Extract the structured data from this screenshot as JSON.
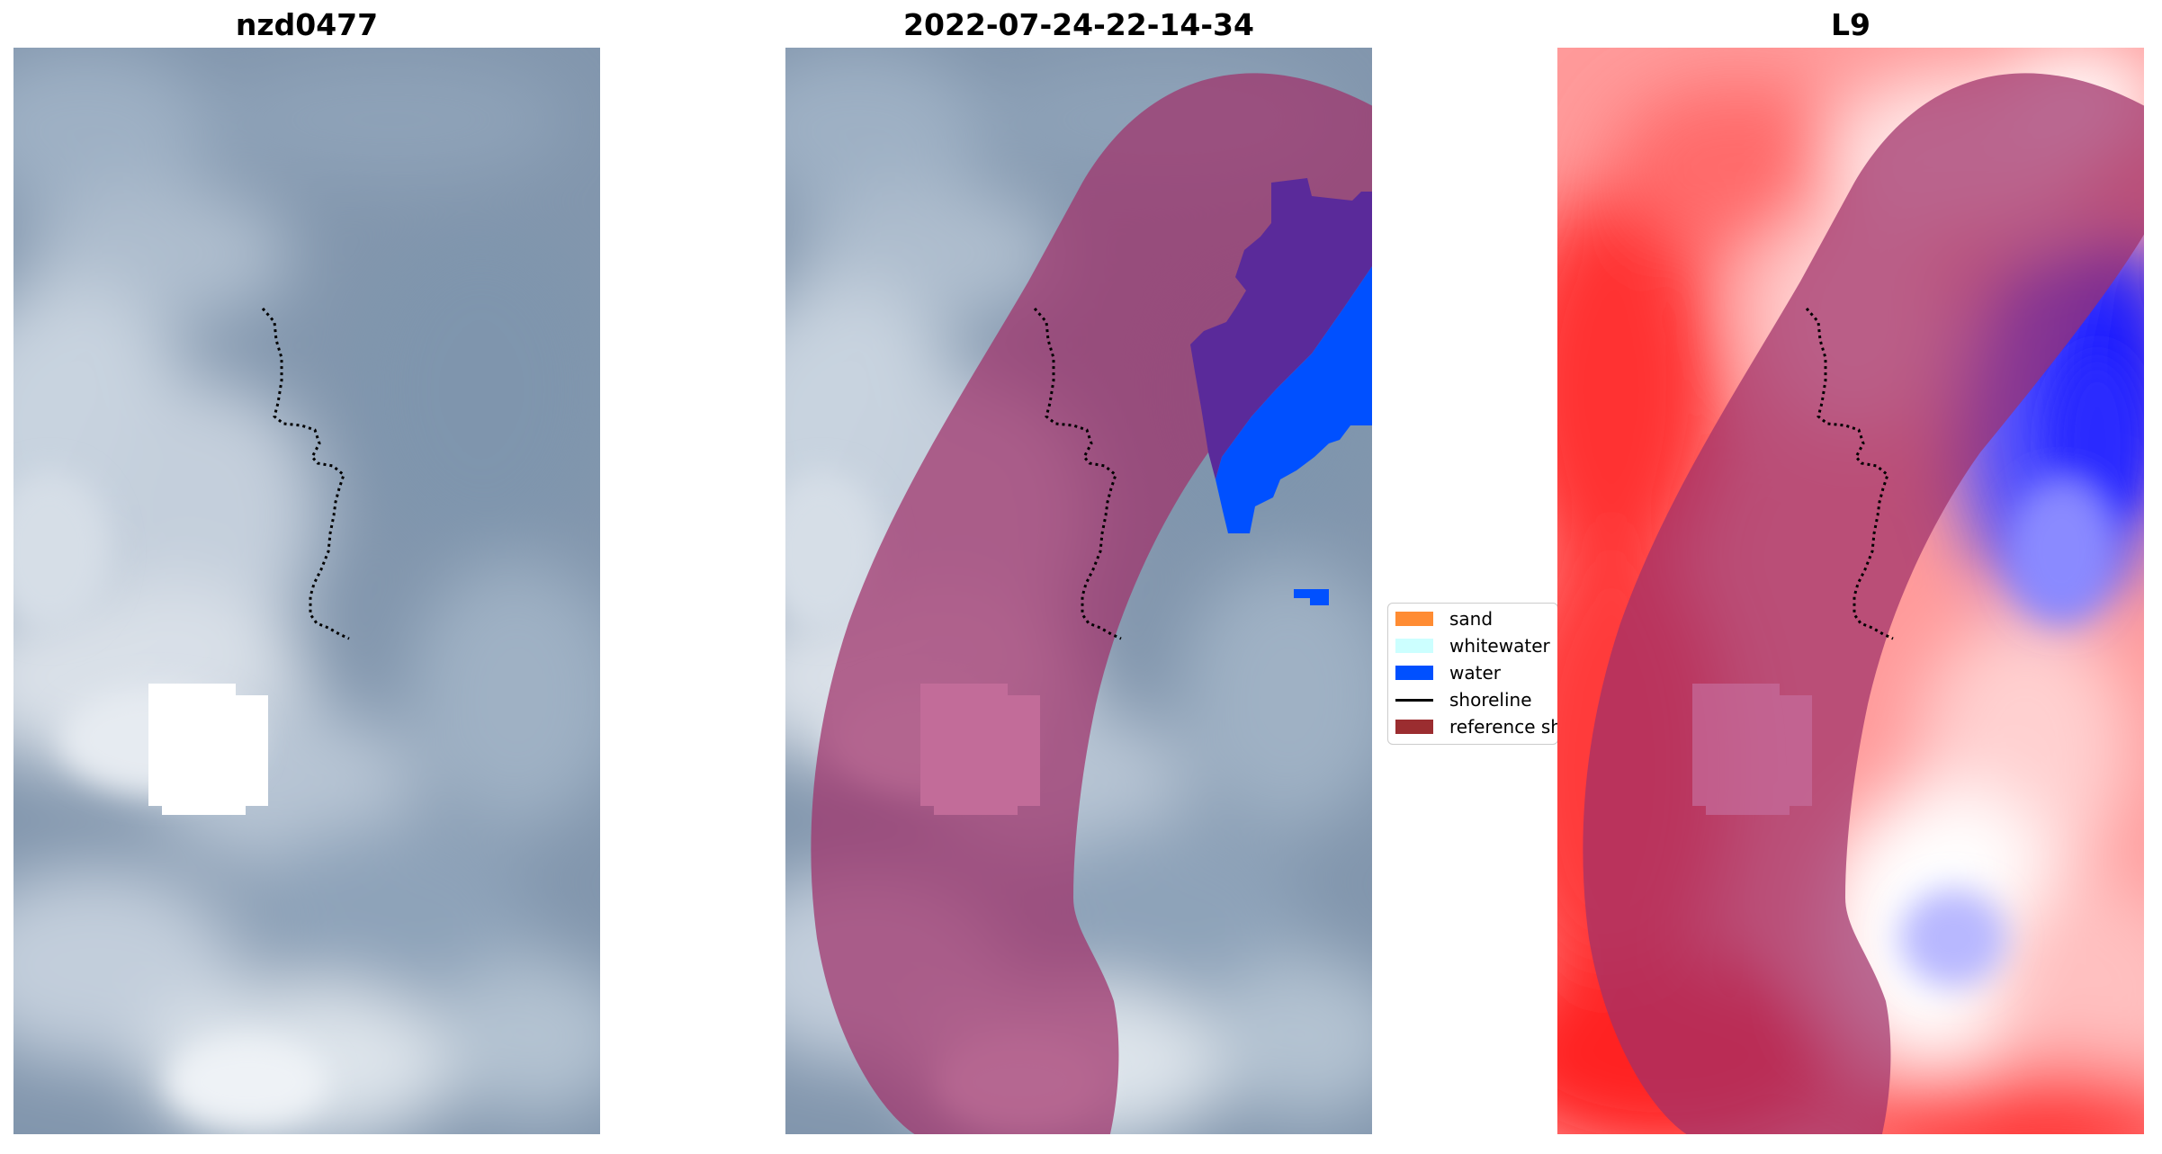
{
  "panels": [
    {
      "title": "nzd0477"
    },
    {
      "title": "2022-07-24-22-14-34"
    },
    {
      "title": "L9"
    }
  ],
  "legend": {
    "items": [
      {
        "label": "sand",
        "color": "#ff8c33",
        "kind": "patch",
        "icon": "sand-swatch-icon"
      },
      {
        "label": "whitewater",
        "color": "#ccffff",
        "kind": "patch",
        "icon": "whitewater-swatch-icon"
      },
      {
        "label": "water",
        "color": "#0050ff",
        "kind": "patch",
        "icon": "water-swatch-icon"
      },
      {
        "label": "shoreline",
        "color": "#000000",
        "kind": "line",
        "icon": "shoreline-line-icon"
      },
      {
        "label": "reference shoreline buffer",
        "color": "#9b2d30",
        "kind": "patch",
        "icon": "reference-buffer-swatch-icon"
      }
    ]
  },
  "colors": {
    "buffer_overlay": "#a0306a",
    "cloud_gray": "#7c90a8",
    "ndwi_positive": "#ff0000",
    "ndwi_negative": "#0000ff",
    "shoreline": "#000000"
  }
}
